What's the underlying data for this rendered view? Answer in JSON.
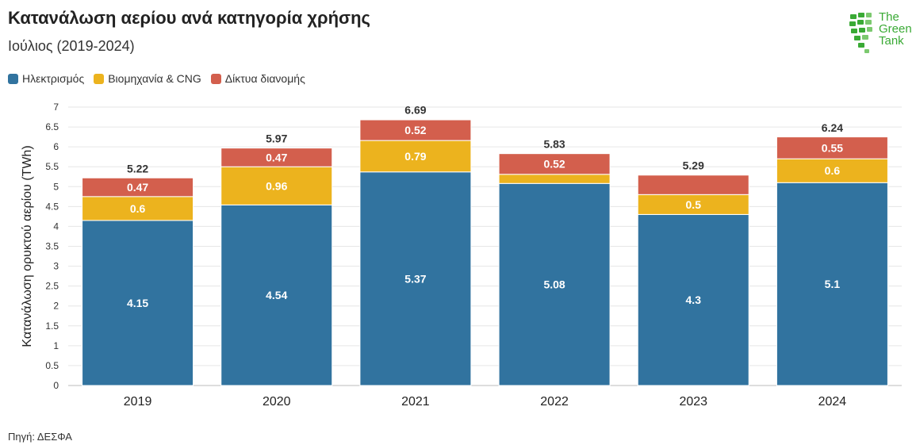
{
  "header": {
    "title": "Κατανάλωση αερίου ανά κατηγορία χρήσης",
    "subtitle": "Ιούλιος (2019-2024)"
  },
  "logo": {
    "text_line1": "The",
    "text_line2": "Green",
    "text_line3": "Tank"
  },
  "source": "Πηγή: ΔΕΣΦΑ",
  "colors": {
    "electricity": "#31739f",
    "industry": "#ecb31e",
    "networks": "#d35f4d"
  },
  "chart_data": {
    "type": "bar",
    "stacked": true,
    "categories": [
      "2019",
      "2020",
      "2021",
      "2022",
      "2023",
      "2024"
    ],
    "series": [
      {
        "name": "Ηλεκτρισμός",
        "values": [
          4.15,
          4.54,
          5.37,
          5.08,
          4.3,
          5.1
        ],
        "labels": [
          "4.15",
          "4.54",
          "5.37",
          "5.08",
          "4.3",
          "5.1"
        ],
        "color": "#31739f"
      },
      {
        "name": "Βιομηχανία & CNG",
        "values": [
          0.6,
          0.96,
          0.79,
          0.23,
          0.5,
          0.6
        ],
        "labels": [
          "0.6",
          "0.96",
          "0.79",
          "",
          "0.5",
          "0.6"
        ],
        "color": "#ecb31e"
      },
      {
        "name": "Δίκτυα διανομής",
        "values": [
          0.47,
          0.47,
          0.52,
          0.52,
          0.49,
          0.55
        ],
        "labels": [
          "0.47",
          "0.47",
          "0.52",
          "0.52",
          "",
          "0.55"
        ],
        "color": "#d35f4d"
      }
    ],
    "totals": [
      "5.22",
      "5.97",
      "6.69",
      "5.83",
      "5.29",
      "6.24"
    ],
    "ylabel": "Κατανάλωση ορυκτού αερίου (TWh)",
    "xlabel": "",
    "ylim": [
      0,
      7
    ],
    "yticks": [
      "0",
      "0.5",
      "1",
      "1.5",
      "2",
      "2.5",
      "3",
      "3.5",
      "4",
      "4.5",
      "5",
      "5.5",
      "6",
      "6.5",
      "7"
    ],
    "grid": true,
    "legend": "top-left"
  }
}
